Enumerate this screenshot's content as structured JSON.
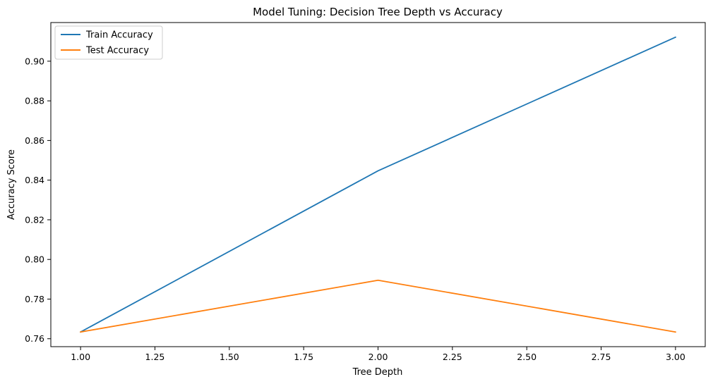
{
  "chart_data": {
    "type": "line",
    "title": "Model Tuning: Decision Tree Depth vs Accuracy",
    "xlabel": "Tree Depth",
    "ylabel": "Accuracy Score",
    "x": [
      1,
      2,
      3
    ],
    "series": [
      {
        "name": "Train Accuracy",
        "color": "#1f77b4",
        "values": [
          0.7634,
          0.8447,
          0.9121
        ]
      },
      {
        "name": "Test Accuracy",
        "color": "#ff7f0e",
        "values": [
          0.7634,
          0.7895,
          0.7634
        ]
      }
    ],
    "xlim": [
      0.9,
      3.1
    ],
    "ylim": [
      0.756,
      0.9195
    ],
    "xticks": [
      1.0,
      1.25,
      1.5,
      1.75,
      2.0,
      2.25,
      2.5,
      2.75,
      3.0
    ],
    "xtick_labels": [
      "1.00",
      "1.25",
      "1.50",
      "1.75",
      "2.00",
      "2.25",
      "2.50",
      "2.75",
      "3.00"
    ],
    "yticks": [
      0.76,
      0.78,
      0.8,
      0.82,
      0.84,
      0.86,
      0.88,
      0.9
    ],
    "ytick_labels": [
      "0.76",
      "0.78",
      "0.80",
      "0.82",
      "0.84",
      "0.86",
      "0.88",
      "0.90"
    ],
    "grid": false,
    "legend_position": "upper-left"
  }
}
